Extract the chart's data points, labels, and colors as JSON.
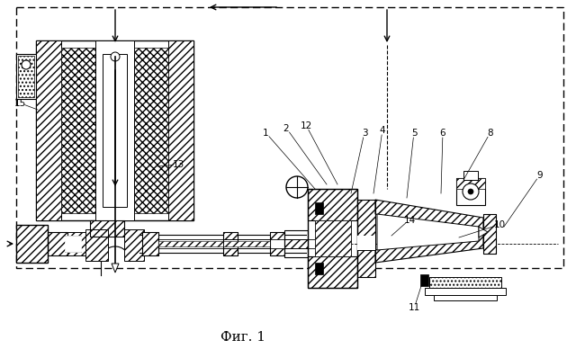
{
  "title": "Фиг. 1",
  "bg_color": "#ffffff",
  "fig_width": 6.4,
  "fig_height": 3.88,
  "dpi": 100
}
